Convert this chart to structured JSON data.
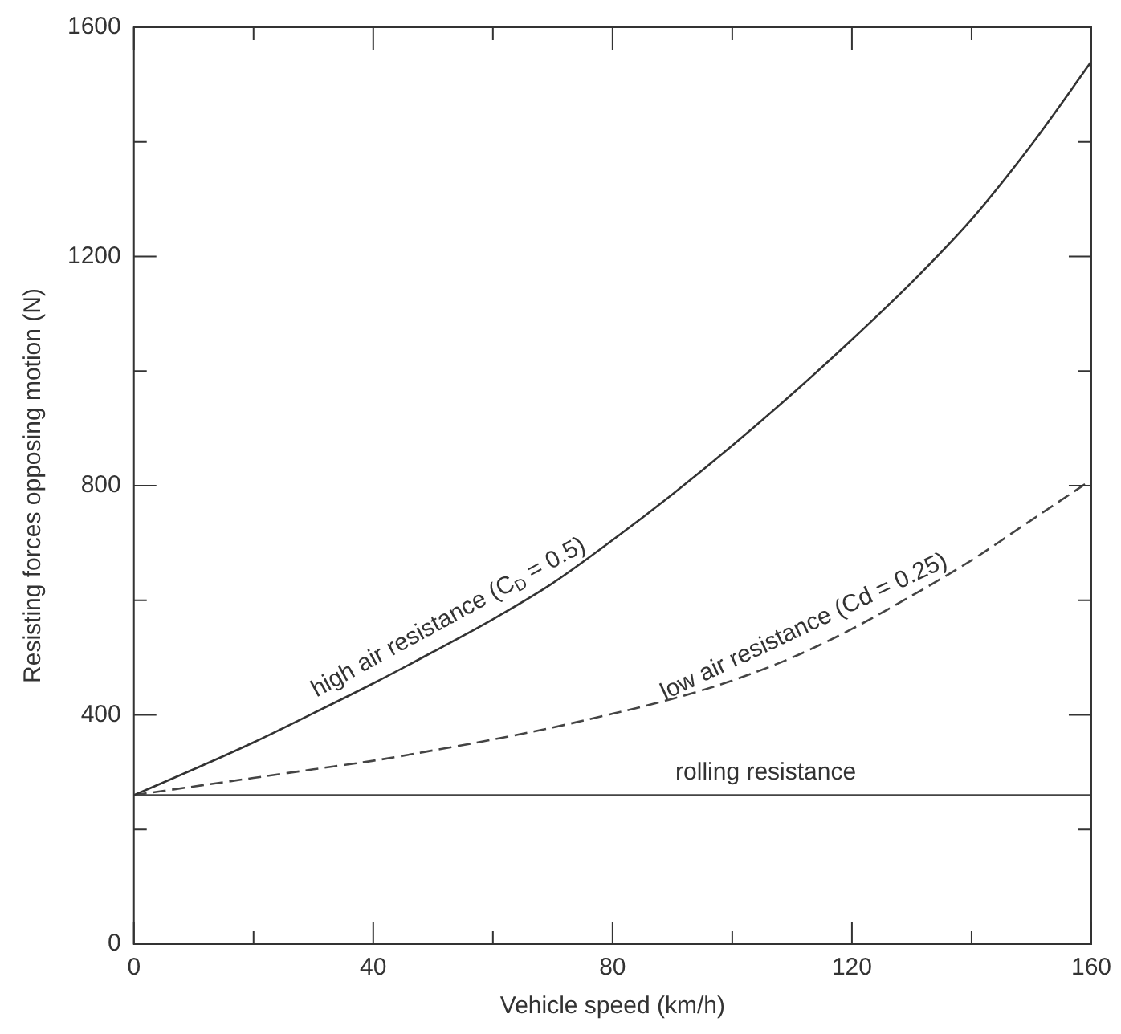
{
  "chart_data": {
    "type": "line",
    "xlabel": "Vehicle speed (km/h)",
    "ylabel": "Resisting forces opposing motion (N)",
    "x": [
      0,
      10,
      20,
      30,
      40,
      50,
      60,
      70,
      80,
      90,
      100,
      110,
      120,
      130,
      140,
      150,
      160
    ],
    "series": [
      {
        "name": "high air resistance (C$_{D}$ = 0.5)",
        "color": "#333333",
        "line_style": "solid",
        "values": [
          260,
          305,
          352,
          403,
          455,
          510,
          567,
          630,
          705,
          785,
          870,
          960,
          1055,
          1155,
          1265,
          1395,
          1540
        ]
      },
      {
        "name": "low air resistance (Cd = 0.25)",
        "color": "#444444",
        "line_style": "dashed",
        "values": [
          260,
          275,
          290,
          305,
          320,
          338,
          357,
          378,
          402,
          428,
          460,
          500,
          550,
          608,
          670,
          740,
          810
        ]
      },
      {
        "name": "rolling resistance",
        "color": "#444444",
        "line_style": "solid",
        "values": [
          260,
          260,
          260,
          260,
          260,
          260,
          260,
          260,
          260,
          260,
          260,
          260,
          260,
          260,
          260,
          260,
          260
        ]
      }
    ],
    "xlim": [
      0,
      160
    ],
    "ylim": [
      0,
      1600
    ],
    "xticks": [
      0,
      {
        "value": 20,
        "label": null
      },
      40,
      {
        "value": 60,
        "label": null
      },
      80,
      {
        "value": 100,
        "label": null
      },
      120,
      {
        "value": 140,
        "label": null
      },
      160
    ],
    "yticks": [
      0,
      {
        "value": 200,
        "label": null
      },
      400,
      {
        "value": 600,
        "label": null
      },
      800,
      {
        "value": 1000,
        "label": null
      },
      1200,
      {
        "value": 1400,
        "label": null
      },
      1600
    ],
    "grid": false,
    "legend": false,
    "marker": "none"
  }
}
